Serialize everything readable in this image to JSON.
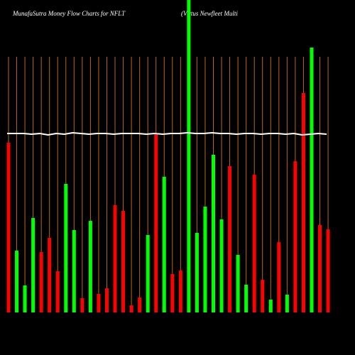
{
  "chart_data": {
    "type": "bar",
    "title": "MunafaSutra  Money Flow  Charts for NFLT",
    "subtitle": "(Virtus Newfleet Multi",
    "values": [
      239,
      87,
      38,
      133,
      85,
      105,
      58,
      181,
      116,
      20,
      129,
      26,
      34,
      151,
      143,
      10,
      21,
      109,
      251,
      191,
      54,
      59,
      440,
      112,
      149,
      222,
      131,
      206,
      81,
      39,
      194,
      46,
      18,
      99,
      25,
      213,
      309,
      373,
      123,
      117
    ],
    "colors": [
      "#ff0000",
      "#00ff00",
      "#00ff00",
      "#00ff00",
      "#ff0000",
      "#ff0000",
      "#ff0000",
      "#00ff00",
      "#00ff00",
      "#ff0000",
      "#00ff00",
      "#ff0000",
      "#ff0000",
      "#ff0000",
      "#ff0000",
      "#ff0000",
      "#ff0000",
      "#00ff00",
      "#ff0000",
      "#00ff00",
      "#ff0000",
      "#ff0000",
      "#00ff00",
      "#00ff00",
      "#00ff00",
      "#00ff00",
      "#00ff00",
      "#ff0000",
      "#00ff00",
      "#00ff00",
      "#ff0000",
      "#ff0000",
      "#00ff00",
      "#ff0000",
      "#00ff00",
      "#ff0000",
      "#ff0000",
      "#00ff00",
      "#ff0000",
      "#ff0000"
    ],
    "line_values": [
      252,
      252,
      252,
      251,
      252,
      250,
      252,
      251,
      253,
      252,
      251,
      252,
      252,
      251,
      252,
      252,
      252,
      251,
      252,
      251,
      252,
      252,
      253,
      252,
      252,
      253,
      252,
      252,
      251,
      252,
      252,
      251,
      252,
      252,
      251,
      252,
      250,
      251,
      252,
      251
    ],
    "line_color": "#ffffff",
    "grid_color": "#b8690f",
    "ylim": [
      0,
      440
    ],
    "grid": true
  }
}
